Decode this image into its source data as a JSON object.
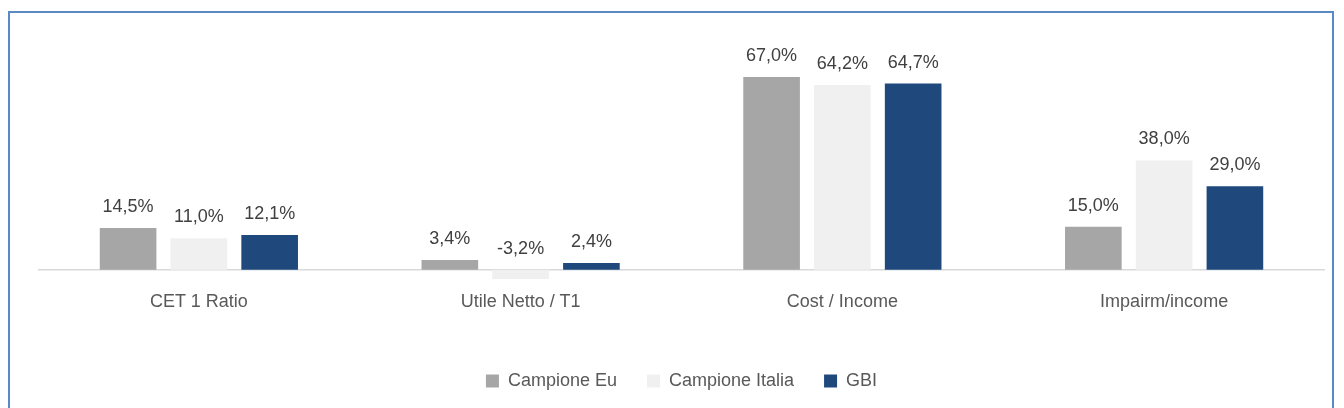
{
  "chart_data": {
    "type": "bar",
    "categories": [
      "CET 1 Ratio",
      "Utile Netto / T1",
      "Cost / Income",
      "Impairm/income"
    ],
    "series": [
      {
        "name": "Campione Eu",
        "color": "#a6a6a6",
        "values": [
          14.5,
          3.4,
          67.0,
          15.0
        ],
        "value_labels": [
          "14,5%",
          "3,4%",
          "67,0%",
          "15,0%"
        ]
      },
      {
        "name": "Campione Italia",
        "color": "#f0f0f0",
        "values": [
          11.0,
          -3.2,
          64.2,
          38.0
        ],
        "value_labels": [
          "11,0%",
          "-3,2%",
          "64,2%",
          "38,0%"
        ]
      },
      {
        "name": "GBI",
        "color": "#1f497d",
        "values": [
          12.1,
          2.4,
          64.7,
          29.0
        ],
        "value_labels": [
          "12,1%",
          "2,4%",
          "64,7%",
          "29,0%"
        ]
      }
    ],
    "legend": "bottom"
  }
}
